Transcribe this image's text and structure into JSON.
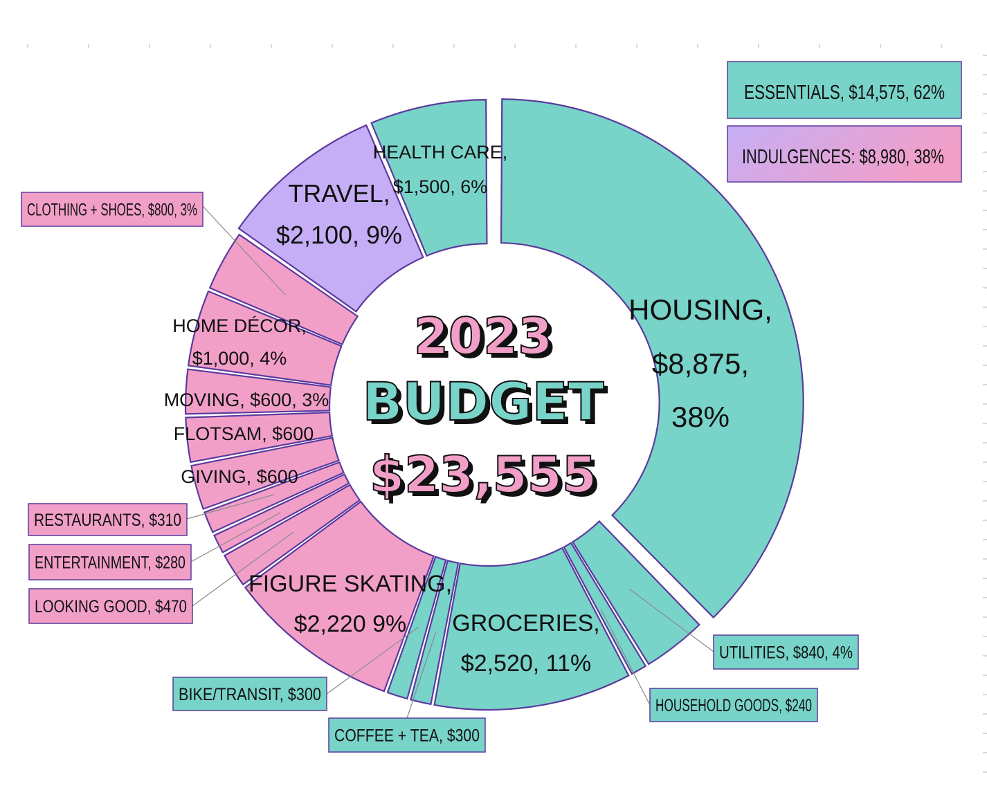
{
  "colors": {
    "essential": "#78d3c9",
    "indulgence": "#f29fc8",
    "travel": "#c5aef5",
    "outline": "#5b3a9e",
    "leader": "#8a8a8a"
  },
  "center": {
    "year": "2023",
    "title": "BUDGET",
    "total": "$23,555"
  },
  "legend": {
    "essentials": "ESSENTIALS, $14,575, 62%",
    "indulgences": "INDULGENCES: $8,980, 38%"
  },
  "chart_data": {
    "type": "pie",
    "series": [
      {
        "name": "Housing",
        "value": 8875,
        "group": "essential",
        "label_lines": [
          "HOUSING,",
          "$8,875,",
          "38%"
        ]
      },
      {
        "name": "Utilities",
        "value": 840,
        "group": "essential",
        "label_lines": [
          "UTILITIES, $840, 4%"
        ]
      },
      {
        "name": "Household goods",
        "value": 240,
        "group": "essential",
        "label_lines": [
          "HOUSEHOLD GOODS, $240"
        ]
      },
      {
        "name": "Groceries",
        "value": 2520,
        "group": "essential",
        "label_lines": [
          "GROCERIES,",
          "$2,520, 11%"
        ]
      },
      {
        "name": "Coffee + tea",
        "value": 300,
        "group": "essential",
        "label_lines": [
          "COFFEE + TEA, $300"
        ]
      },
      {
        "name": "Bike/transit",
        "value": 300,
        "group": "essential",
        "label_lines": [
          "BIKE/TRANSIT, $300"
        ]
      },
      {
        "name": "Figure skating",
        "value": 2220,
        "group": "indulgence",
        "label_lines": [
          "FIGURE SKATING,",
          "$2,220 9%"
        ]
      },
      {
        "name": "Looking good",
        "value": 470,
        "group": "indulgence",
        "label_lines": [
          "LOOKING GOOD, $470"
        ]
      },
      {
        "name": "Entertainment",
        "value": 280,
        "group": "indulgence",
        "label_lines": [
          "ENTERTAINMENT, $280"
        ]
      },
      {
        "name": "Restaurants",
        "value": 310,
        "group": "indulgence",
        "label_lines": [
          "RESTAURANTS, $310"
        ]
      },
      {
        "name": "Giving",
        "value": 600,
        "group": "indulgence",
        "label_lines": [
          "GIVING, $600"
        ]
      },
      {
        "name": "Flotsam",
        "value": 600,
        "group": "indulgence",
        "label_lines": [
          "FLOTSAM, $600"
        ]
      },
      {
        "name": "Moving",
        "value": 600,
        "group": "indulgence",
        "label_lines": [
          "MOVING, $600, 3%"
        ]
      },
      {
        "name": "Home décor",
        "value": 1000,
        "group": "indulgence",
        "label_lines": [
          "HOME DÉCOR,",
          "$1,000, 4%"
        ]
      },
      {
        "name": "Clothing + shoes",
        "value": 800,
        "group": "indulgence",
        "label_lines": [
          "CLOTHING + SHOES, $800, 3%"
        ]
      },
      {
        "name": "Travel",
        "value": 2100,
        "group": "travel",
        "label_lines": [
          "TRAVEL,",
          "$2,100, 9%"
        ]
      },
      {
        "name": "Health care",
        "value": 1500,
        "group": "essential",
        "label_lines": [
          "HEALTH CARE,",
          "$1,500, 6%"
        ]
      }
    ]
  }
}
